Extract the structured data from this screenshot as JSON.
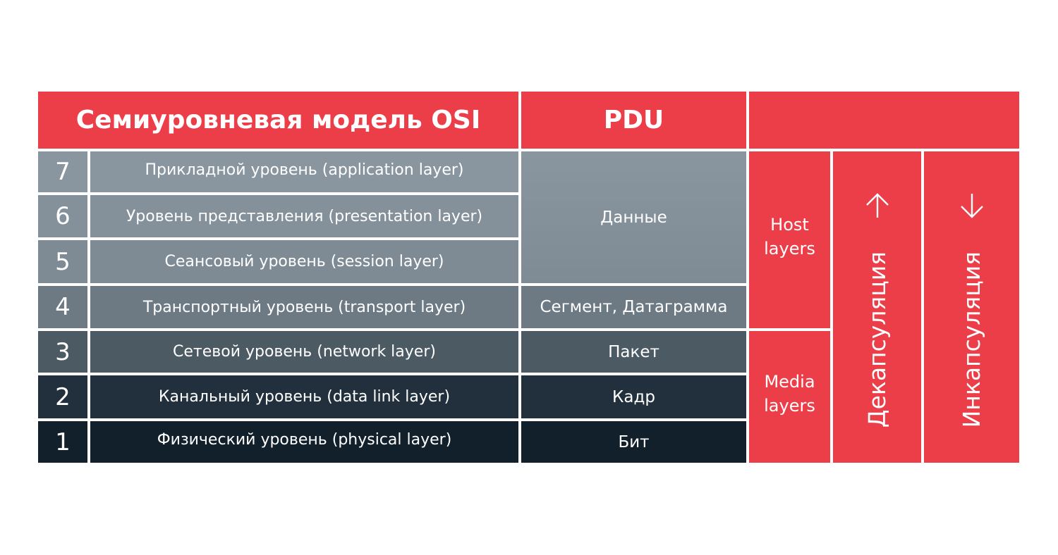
{
  "header": {
    "model_title": "Семиуровневая модель OSI",
    "pdu_title": "PDU",
    "extra_title": ""
  },
  "layers": [
    {
      "number": "7",
      "name": "Прикладной уровень (application layer)"
    },
    {
      "number": "6",
      "name": "Уровень представления (presentation layer)"
    },
    {
      "number": "5",
      "name": "Сеансовый уровень (session layer)"
    },
    {
      "number": "4",
      "name": "Транспортный уровень (transport layer)"
    },
    {
      "number": "3",
      "name": "Сетевой уровень (network layer)"
    },
    {
      "number": "2",
      "name": "Канальный уровень (data link layer)"
    },
    {
      "number": "1",
      "name": "Физический уровень (physical layer)"
    }
  ],
  "pdu": {
    "data": "Данные",
    "segment": "Сегмент, Датаграмма",
    "packet": "Пакет",
    "frame": "Кадр",
    "bit": "Бит"
  },
  "groups": {
    "host": "Host\nlayers",
    "media": "Media\nlayers"
  },
  "flows": {
    "decapsulation": {
      "label": "Декапсуляция",
      "arrow": "↑",
      "icon": "arrow-up-icon"
    },
    "encapsulation": {
      "label": "Инкапсуляция",
      "arrow": "↓",
      "icon": "arrow-down-icon"
    }
  },
  "colors": {
    "accent_red": "#ec3e48",
    "layer_7": "#8a969f",
    "layer_6": "#84909a",
    "layer_5": "#7e8b95",
    "layer_4": "#6d7a84",
    "layer_3": "#4c5a64",
    "layer_2": "#21303c",
    "layer_1": "#12202b"
  }
}
